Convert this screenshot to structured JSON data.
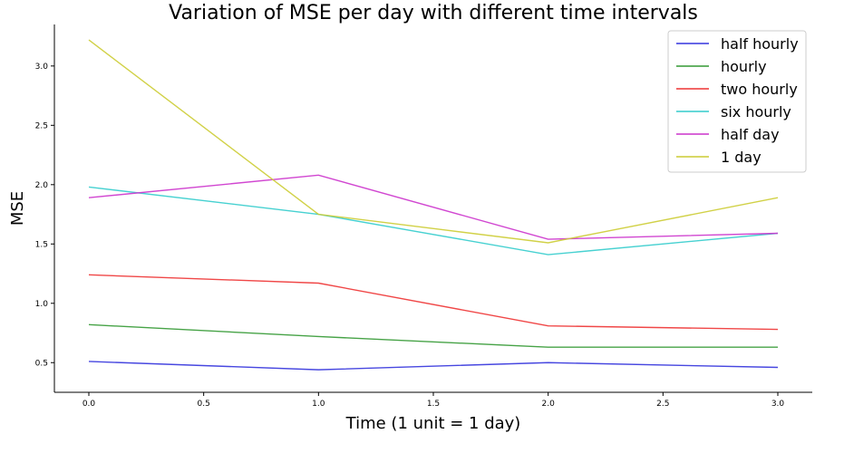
{
  "chart_data": {
    "type": "line",
    "title": "Variation of MSE per day with different time intervals",
    "xlabel": "Time (1 unit = 1 day)",
    "ylabel": "MSE",
    "x": [
      0.0,
      1.0,
      2.0,
      3.0
    ],
    "xlim": [
      -0.15,
      3.15
    ],
    "ylim": [
      0.25,
      3.35
    ],
    "xticks": [
      0.0,
      0.5,
      1.0,
      1.5,
      2.0,
      2.5,
      3.0
    ],
    "xtick_labels": [
      "0.0",
      "0.5",
      "1.0",
      "1.5",
      "2.0",
      "2.5",
      "3.0"
    ],
    "yticks": [
      0.5,
      1.0,
      1.5,
      2.0,
      2.5,
      3.0
    ],
    "ytick_labels": [
      "0.5",
      "1.0",
      "1.5",
      "2.0",
      "2.5",
      "3.0"
    ],
    "grid": false,
    "legend_position": "top-right",
    "series": [
      {
        "name": "half hourly",
        "color": "#3333dd",
        "values": [
          0.51,
          0.44,
          0.5,
          0.46
        ]
      },
      {
        "name": "hourly",
        "color": "#339933",
        "values": [
          0.82,
          0.72,
          0.63,
          0.63
        ]
      },
      {
        "name": "two hourly",
        "color": "#ee3333",
        "values": [
          1.24,
          1.17,
          0.81,
          0.78
        ]
      },
      {
        "name": "six hourly",
        "color": "#33cccc",
        "values": [
          1.98,
          1.75,
          1.41,
          1.59
        ]
      },
      {
        "name": "half day",
        "color": "#cc33cc",
        "values": [
          1.89,
          2.08,
          1.54,
          1.59
        ]
      },
      {
        "name": "1 day",
        "color": "#cccc33",
        "values": [
          3.22,
          1.75,
          1.51,
          1.89
        ]
      }
    ]
  }
}
